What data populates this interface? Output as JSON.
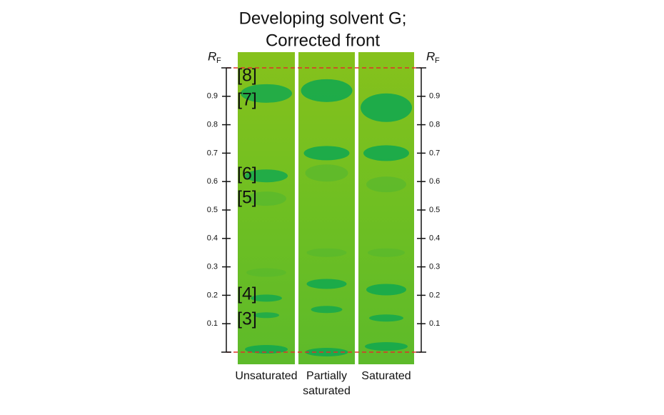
{
  "title": [
    "Developing solvent G;",
    "Corrected front"
  ],
  "rf_axis": {
    "label": {
      "main": "R",
      "sub": "F"
    },
    "ylim": [
      0,
      1
    ],
    "yticks": [
      0.1,
      0.2,
      0.3,
      0.4,
      0.5,
      0.6,
      0.7,
      0.8,
      0.9
    ]
  },
  "lanes": [
    {
      "label": [
        "Unsaturated"
      ],
      "spots": [
        0.91,
        0.62,
        0.54,
        0.28,
        0.19,
        0.13,
        0.01
      ]
    },
    {
      "label": [
        "Partially",
        "saturated"
      ],
      "spots": [
        0.92,
        0.7,
        0.63,
        0.35,
        0.24,
        0.15,
        0.0
      ]
    },
    {
      "label": [
        "Saturated"
      ],
      "spots": [
        0.86,
        0.7,
        0.59,
        0.35,
        0.22,
        0.12,
        0.02
      ]
    }
  ],
  "band_labels": [
    "[8]",
    "[7]",
    "[6]",
    "[5]",
    "[4]",
    "[3]"
  ]
}
